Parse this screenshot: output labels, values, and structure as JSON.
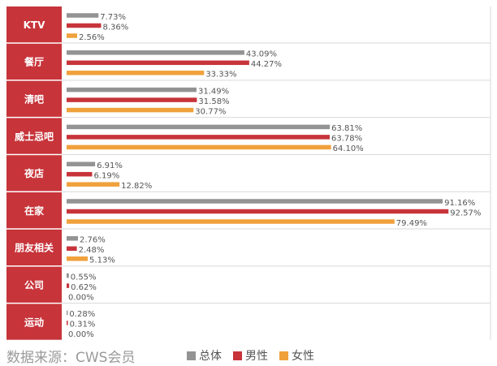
{
  "chart_data": {
    "type": "bar",
    "orientation": "horizontal",
    "categories": [
      "KTV",
      "餐厅",
      "清吧",
      "威士忌吧",
      "夜店",
      "在家",
      "朋友相关",
      "公司",
      "运动"
    ],
    "series": [
      {
        "name": "总体",
        "color": "#939393",
        "values": [
          7.73,
          43.09,
          31.49,
          63.81,
          6.91,
          91.16,
          2.76,
          0.55,
          0.28
        ],
        "labels": [
          "7.73%",
          "43.09%",
          "31.49%",
          "63.81%",
          "6.91%",
          "91.16%",
          "2.76%",
          "0.55%",
          "0.28%"
        ]
      },
      {
        "name": "男性",
        "color": "#c7343a",
        "values": [
          8.36,
          44.27,
          31.58,
          63.78,
          6.19,
          92.57,
          2.48,
          0.62,
          0.31
        ],
        "labels": [
          "8.36%",
          "44.27%",
          "31.58%",
          "63.78%",
          "6.19%",
          "92.57%",
          "2.48%",
          "0.62%",
          "0.31%"
        ]
      },
      {
        "name": "女性",
        "color": "#f0a13c",
        "values": [
          2.56,
          33.33,
          30.77,
          64.1,
          12.82,
          79.49,
          5.13,
          0.0,
          0.0
        ],
        "labels": [
          "2.56%",
          "33.33%",
          "30.77%",
          "64.10%",
          "12.82%",
          "79.49%",
          "5.13%",
          "0.00%",
          "0.00%"
        ]
      }
    ],
    "xlim": [
      0,
      100
    ],
    "legend_position": "bottom",
    "grid": false
  },
  "footer": {
    "source": "数据来源：CWS会员"
  },
  "colors": {
    "category_bg": "#c7343a",
    "separator": "#d9d9d9"
  }
}
